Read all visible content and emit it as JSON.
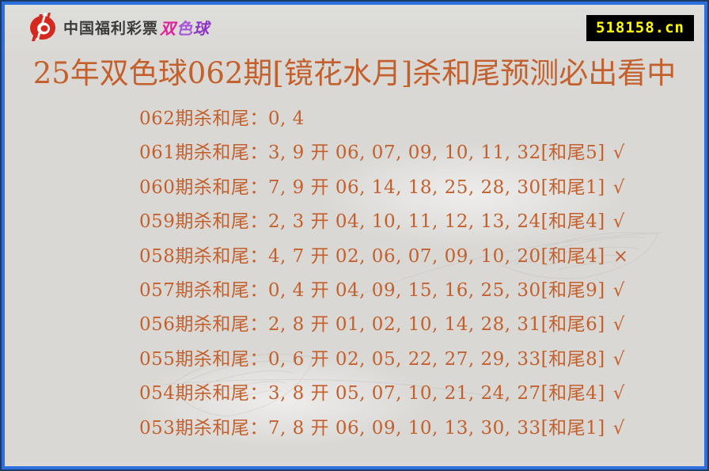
{
  "page": {
    "outer_border_color": "#1c3a66",
    "inner_border_color": "#2e6fe0",
    "background_color": "#d9d8d5"
  },
  "header": {
    "logo_icon": "china-welfare-lottery-logo",
    "brand": "中国福利彩票",
    "brand_highlight": [
      {
        "char": "双",
        "color": "#e01f9b"
      },
      {
        "char": "色",
        "color": "#a656d8"
      },
      {
        "char": "球",
        "color": "#8f35c4"
      }
    ],
    "site_badge": "518158.cn",
    "badge_bg": "#000000",
    "badge_text_color": "#ffff00"
  },
  "title": "25年双色球062期[镜花水月]杀和尾预测必出看中",
  "colors": {
    "accent_orange": "#c4602c",
    "logo_red": "#d5281e"
  },
  "predictions": [
    {
      "label": "062期杀和尾：",
      "value": "0, 4",
      "mark": ""
    },
    {
      "label": "061期杀和尾：",
      "value": "3, 9 开 06, 07, 09, 10, 11, 32[和尾5]",
      "mark": "√"
    },
    {
      "label": "060期杀和尾：",
      "value": "7, 9 开 06, 14, 18, 25, 28, 30[和尾1]",
      "mark": "√"
    },
    {
      "label": "059期杀和尾：",
      "value": "2, 3 开 04, 10, 11, 12, 13, 24[和尾4]",
      "mark": "√"
    },
    {
      "label": "058期杀和尾：",
      "value": "4, 7 开 02, 06, 07, 09, 10, 20[和尾4]",
      "mark": "×"
    },
    {
      "label": "057期杀和尾：",
      "value": "0, 4 开 04, 09, 15, 16, 25, 30[和尾9]",
      "mark": "√"
    },
    {
      "label": "056期杀和尾：",
      "value": "2, 8 开 01, 02, 10, 14, 28, 31[和尾6]",
      "mark": "√"
    },
    {
      "label": "055期杀和尾：",
      "value": "0, 6 开 02, 05, 22, 27, 29, 33[和尾8]",
      "mark": "√"
    },
    {
      "label": "054期杀和尾：",
      "value": "3, 8 开 05, 07, 10, 21, 24, 27[和尾4]",
      "mark": "√"
    },
    {
      "label": "053期杀和尾：",
      "value": "7, 8 开 06, 09, 10, 13, 30, 33[和尾1]",
      "mark": "√"
    }
  ]
}
